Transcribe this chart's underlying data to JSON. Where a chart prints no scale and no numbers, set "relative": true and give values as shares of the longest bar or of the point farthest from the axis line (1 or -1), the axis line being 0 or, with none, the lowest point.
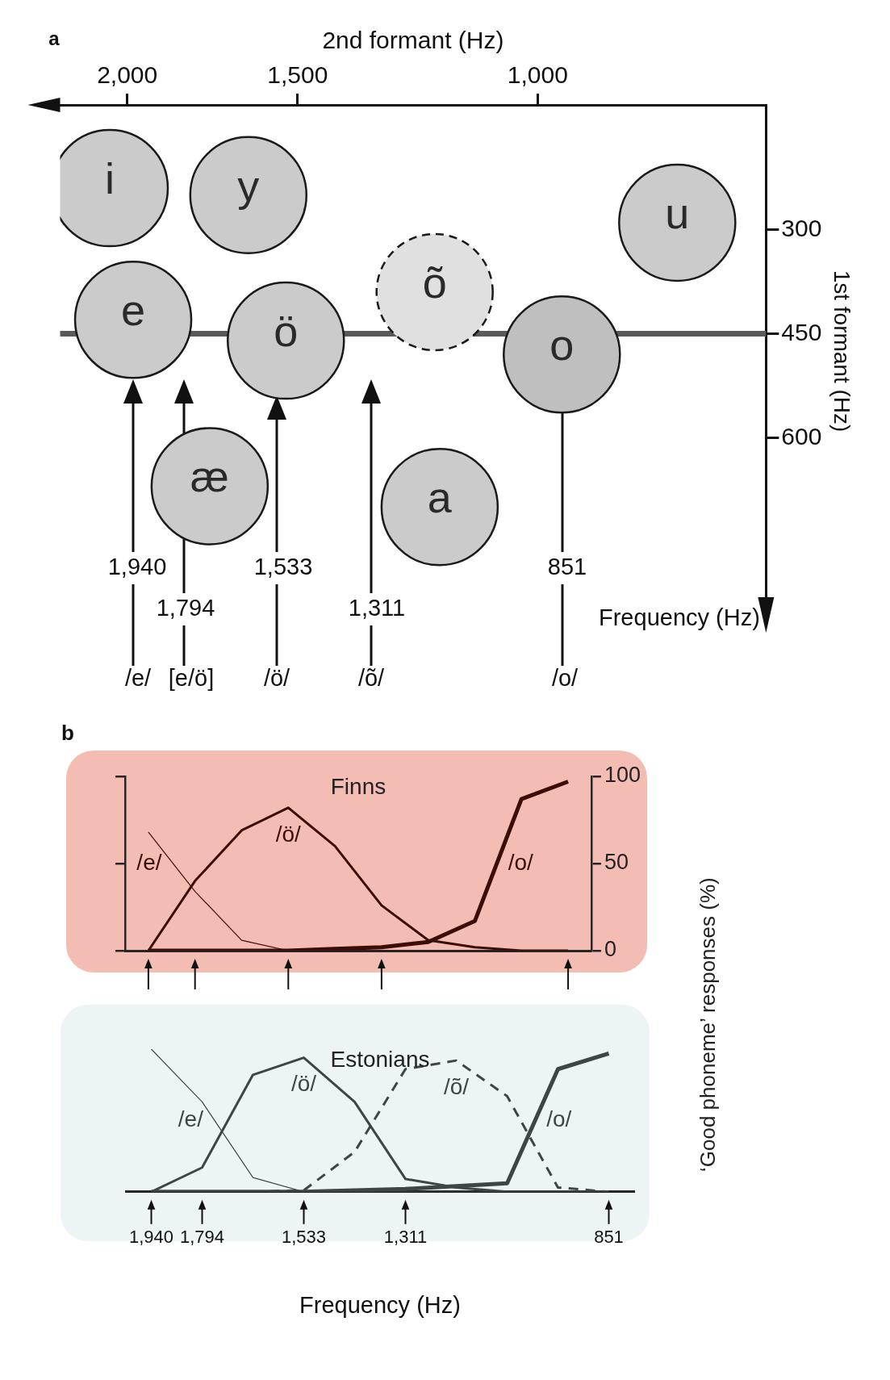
{
  "chart_data": [
    {
      "type": "bubble",
      "xlabel": "2nd formant (Hz)",
      "ylabel": "1st formant (Hz)",
      "log": "x",
      "xlim": [
        2240,
        680
      ],
      "xticks": [
        {
          "value": 2000,
          "label": "2,000"
        },
        {
          "value": 1500,
          "label": "1,500"
        },
        {
          "value": 1000,
          "label": "1,000"
        }
      ],
      "ylim": [
        830,
        120
      ],
      "yticks": [
        300,
        450,
        600
      ],
      "ref_lines": [
        {
          "axis": "y",
          "value": 450,
          "color": "#5a5a5a"
        }
      ],
      "series": [
        {
          "name": "i",
          "color": "#cbcbcb",
          "x": [
            2060
          ],
          "values": [
            240
          ],
          "sizes": [
            1
          ]
        },
        {
          "name": "y",
          "color": "#cbcbcb",
          "x": [
            1630
          ],
          "values": [
            250
          ],
          "sizes": [
            1
          ]
        },
        {
          "name": "u",
          "color": "#cbcbcb",
          "x": [
            790
          ],
          "values": [
            290
          ],
          "sizes": [
            1
          ]
        },
        {
          "name": "e",
          "color": "#cbcbcb",
          "x": [
            1980
          ],
          "values": [
            430
          ],
          "sizes": [
            1
          ]
        },
        {
          "name": "ö",
          "color": "#cbcbcb",
          "x": [
            1530
          ],
          "values": [
            460
          ],
          "sizes": [
            1
          ]
        },
        {
          "name": "õ",
          "color": "#e0e0e0",
          "x": [
            1190
          ],
          "values": [
            390
          ],
          "sizes": [
            1
          ],
          "line_style": "dashed"
        },
        {
          "name": "o",
          "color": "#bfbfbf",
          "x": [
            960
          ],
          "values": [
            480
          ],
          "sizes": [
            1
          ]
        },
        {
          "name": "æ",
          "color": "#cbcbcb",
          "x": [
            1740
          ],
          "values": [
            670
          ],
          "sizes": [
            1
          ]
        },
        {
          "name": "a",
          "color": "#cbcbcb",
          "x": [
            1180
          ],
          "values": [
            700
          ],
          "sizes": [
            1
          ]
        }
      ],
      "annotations": [
        "a",
        "1,940",
        "1,794",
        "1,533",
        "1,311",
        "851",
        "/e/",
        "[e/ö]",
        "/ö/",
        "/õ/",
        "/o/",
        "Frequency (Hz)"
      ]
    },
    {
      "type": "line",
      "title": "Finns",
      "ylabel": "‘Good phoneme’ responses (%)",
      "categories": [
        null,
        null,
        null,
        null,
        null,
        null,
        null,
        null,
        null,
        null
      ],
      "ylim": [
        0,
        100
      ],
      "yticks": [
        0,
        50,
        100
      ],
      "tick_labels": "y",
      "marker": "none",
      "series": [
        {
          "name": "/e/",
          "color": "#3b0d08",
          "values": [
            68,
            34,
            6,
            0,
            0,
            0,
            0,
            0,
            0,
            0
          ]
        },
        {
          "name": "/ö/",
          "color": "#3b0d08",
          "values": [
            0,
            40,
            69,
            82,
            60,
            26,
            6,
            2,
            0,
            0
          ]
        },
        {
          "name": "/o/",
          "color": "#3b0d08",
          "values": [
            0,
            0,
            0,
            0,
            1,
            2,
            5,
            17,
            87,
            97
          ]
        }
      ],
      "annotations": [
        "b"
      ]
    },
    {
      "type": "line",
      "title": "Estonians",
      "xlabel": "Frequency (Hz)",
      "categories": [
        "1,940",
        "1,794",
        null,
        "1,533",
        null,
        "1,311",
        null,
        null,
        null,
        "851"
      ],
      "relative": true,
      "marker": "none",
      "series": [
        {
          "name": "/e/",
          "color": "#3d4548",
          "values": [
            1,
            0.63,
            0.1,
            0,
            0,
            0,
            0,
            0,
            0,
            0
          ]
        },
        {
          "name": "/ö/",
          "color": "#3d4548",
          "values": [
            0,
            0.17,
            0.82,
            0.94,
            0.63,
            0.09,
            0.03,
            0,
            0,
            0
          ]
        },
        {
          "name": "/õ/",
          "color": "#3d4548",
          "values": [
            0,
            0,
            0,
            0.01,
            0.28,
            0.86,
            0.92,
            0.67,
            0.03,
            0
          ],
          "line_style": "dashed"
        },
        {
          "name": "/o/",
          "color": "#3d4548",
          "values": [
            0,
            0,
            0,
            0,
            0.01,
            0.02,
            0.04,
            0.06,
            0.86,
            0.97
          ]
        }
      ]
    }
  ]
}
